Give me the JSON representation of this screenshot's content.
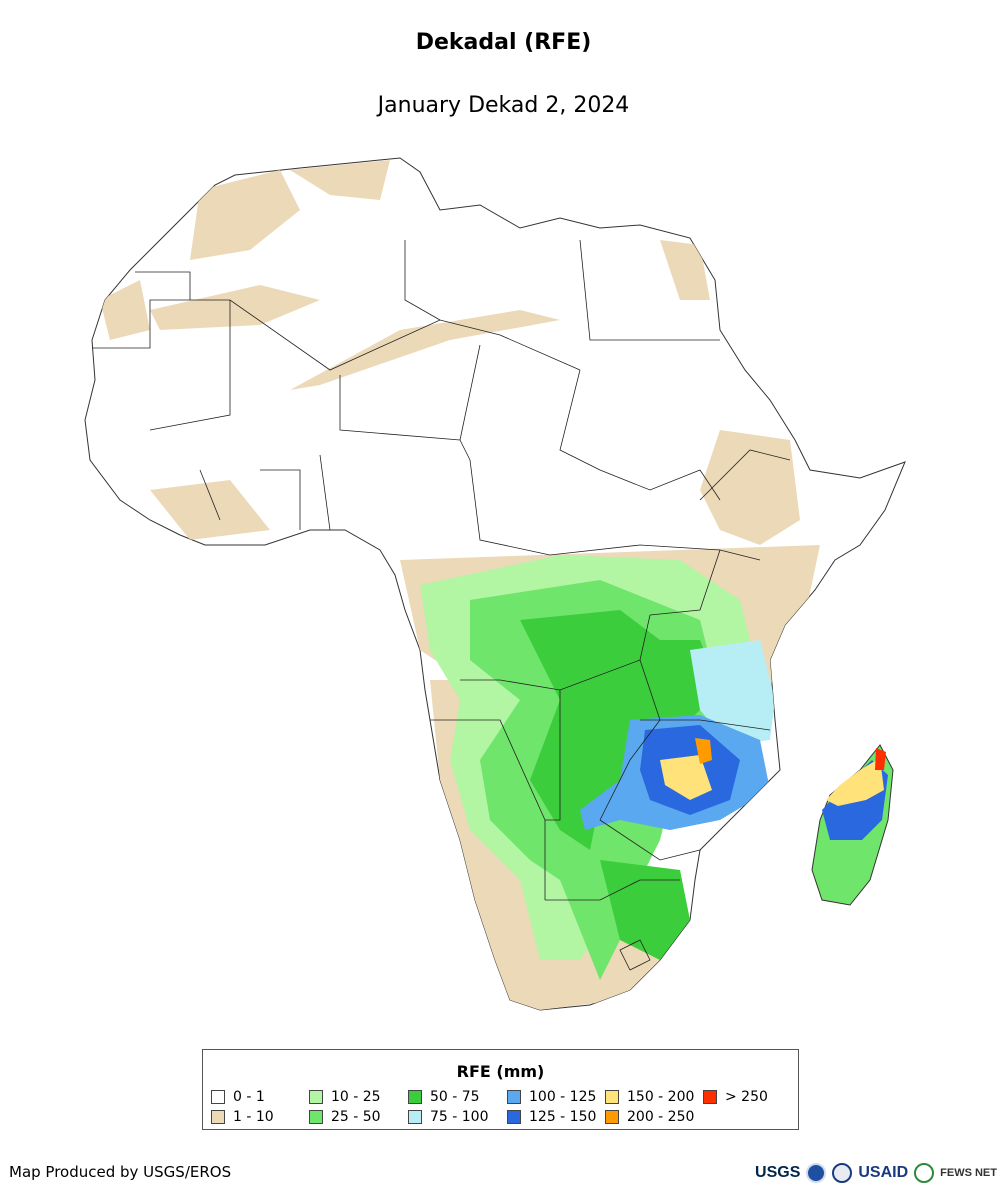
{
  "title": "Dekadal (RFE)",
  "subtitle": "January Dekad 2, 2024",
  "legend": {
    "title": "RFE (mm)",
    "items": [
      {
        "label": "0 - 1",
        "color": "#ffffff"
      },
      {
        "label": "1 - 10",
        "color": "#ecd9b8"
      },
      {
        "label": "10 - 25",
        "color": "#b2f5a2"
      },
      {
        "label": "25 - 50",
        "color": "#6fe56b"
      },
      {
        "label": "50 - 75",
        "color": "#3ccd3c"
      },
      {
        "label": "75 - 100",
        "color": "#b7eef5"
      },
      {
        "label": "100 - 125",
        "color": "#5aa8f0"
      },
      {
        "label": "125 - 150",
        "color": "#2a68e0"
      },
      {
        "label": "150 - 200",
        "color": "#ffe27a"
      },
      {
        "label": "200 - 250",
        "color": "#ff9a00"
      },
      {
        "label": "> 250",
        "color": "#ff3000"
      }
    ]
  },
  "credit": "Map Produced by USGS/EROS",
  "logos": {
    "usgs": "USGS",
    "usaid": "USAID",
    "fewsnet": "FEWS NET"
  }
}
